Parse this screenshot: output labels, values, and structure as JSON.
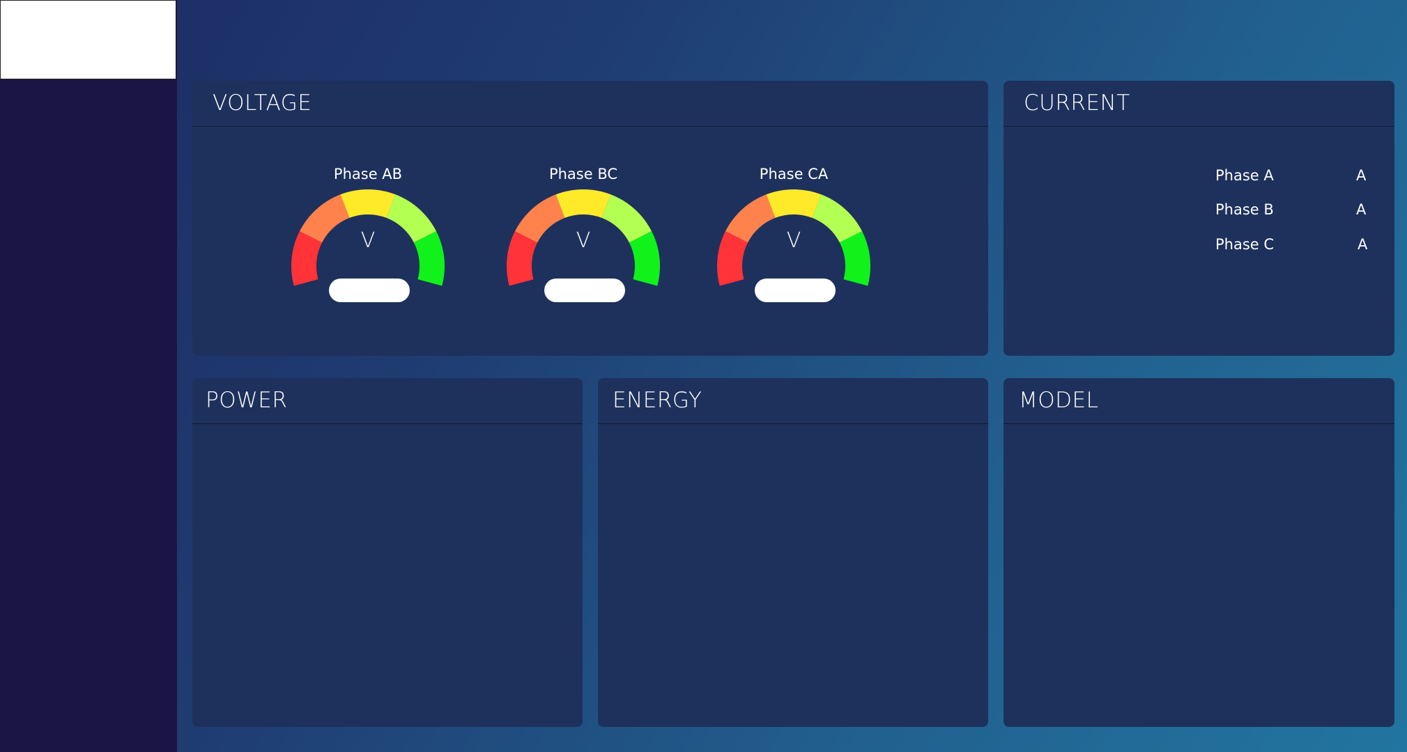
{
  "panels": {
    "voltage": {
      "title": "VOLTAGE"
    },
    "current": {
      "title": "CURRENT"
    },
    "power": {
      "title": "POWER"
    },
    "energy": {
      "title": "ENERGY"
    },
    "model": {
      "title": "MODEL"
    }
  },
  "voltage_gauges": [
    {
      "label": "Phase AB",
      "unit": "V",
      "value": ""
    },
    {
      "label": "Phase BC",
      "unit": "V",
      "value": ""
    },
    {
      "label": "Phase CA",
      "unit": "V",
      "value": ""
    }
  ],
  "gauge_colors": [
    "#ff3338",
    "#ff824c",
    "#ffea2a",
    "#b3ff52",
    "#11f21b"
  ],
  "current_rows": [
    {
      "label": "Phase A",
      "unit": "A",
      "value": ""
    },
    {
      "label": "Phase B",
      "unit": "A",
      "value": ""
    },
    {
      "label": "Phase C",
      "unit": "A",
      "value": ""
    }
  ]
}
